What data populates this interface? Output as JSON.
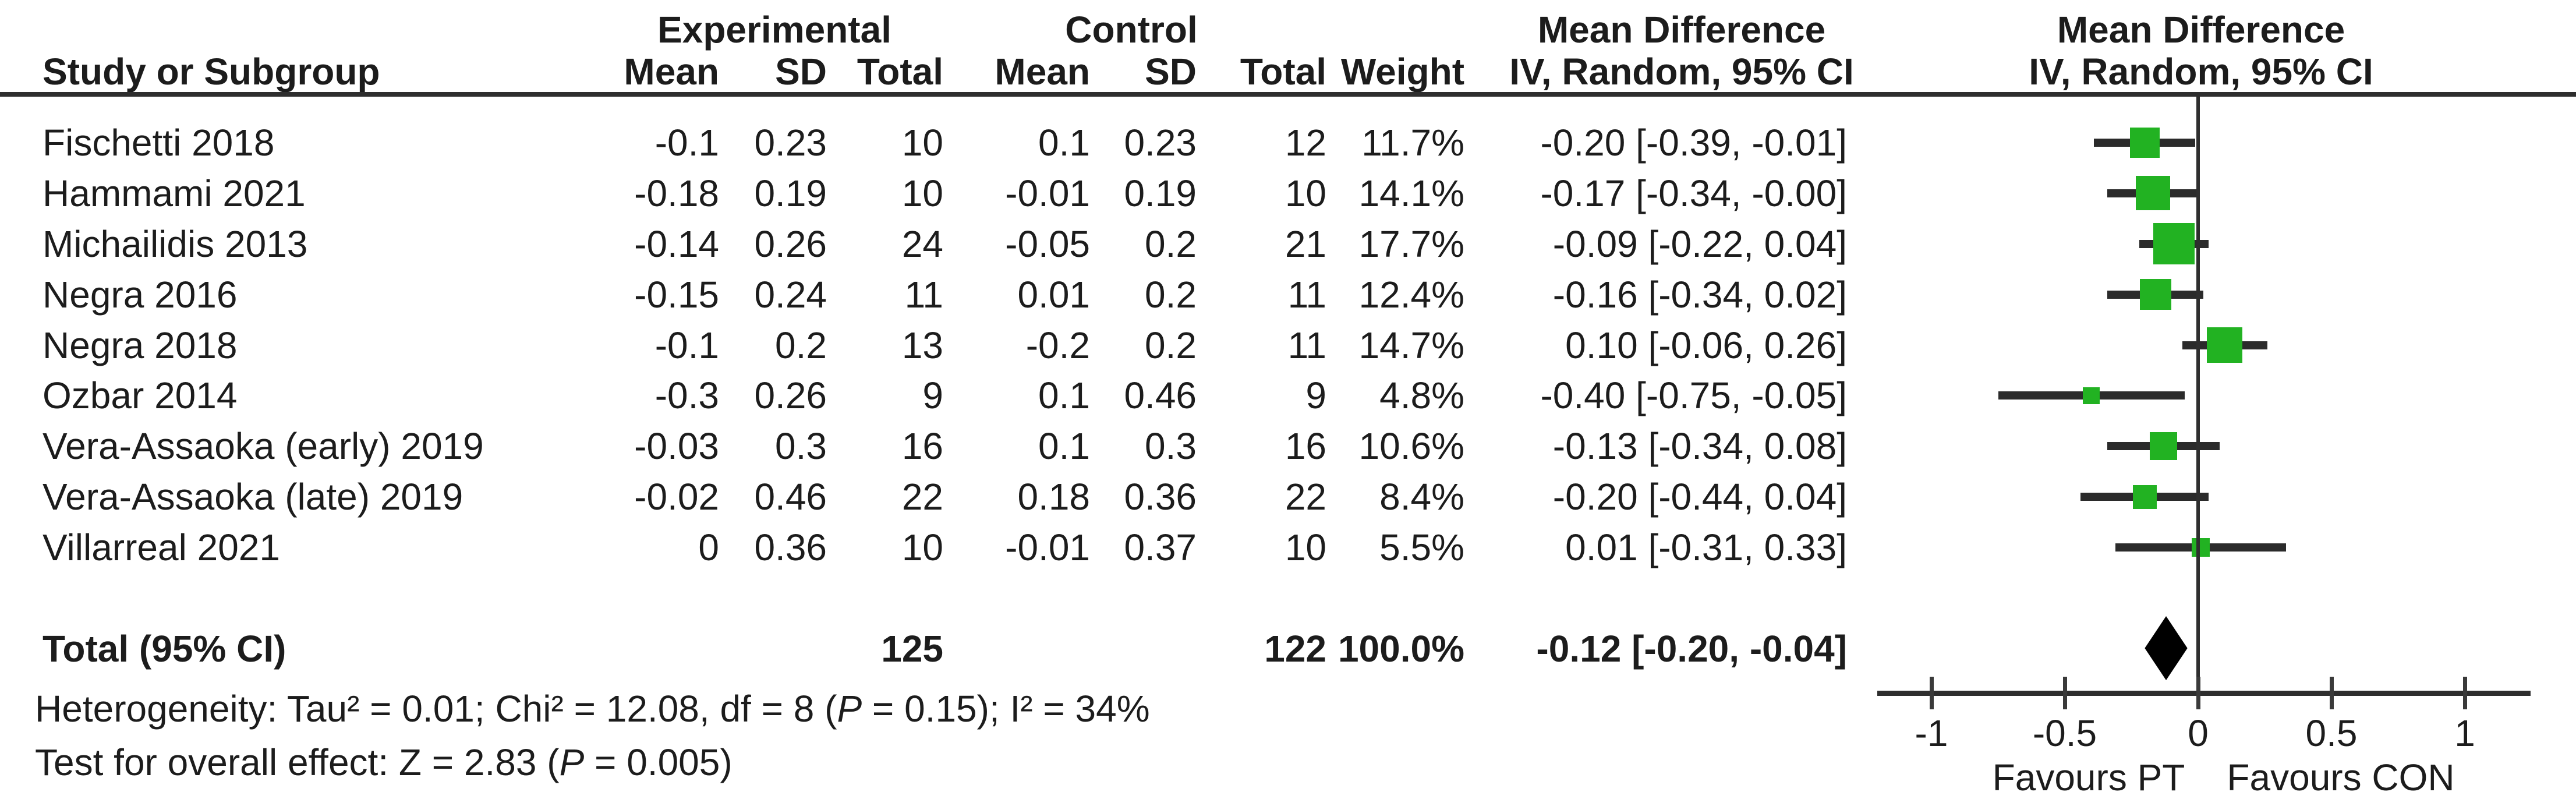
{
  "header": {
    "col_study": "Study or Subgroup",
    "group_experimental": "Experimental",
    "group_control": "Control",
    "exp_mean": "Mean",
    "exp_sd": "SD",
    "exp_total": "Total",
    "ctrl_mean": "Mean",
    "ctrl_sd": "SD",
    "ctrl_total": "Total",
    "col_weight": "Weight",
    "md_text_line1": "Mean Difference",
    "md_text_line2": "IV, Random, 95% CI",
    "md_plot_line1": "Mean Difference",
    "md_plot_line2": "IV, Random, 95% CI"
  },
  "chart_data": {
    "type": "forest",
    "effect_measure": "Mean Difference",
    "model": "IV, Random, 95% CI",
    "studies": [
      {
        "name": "Fischetti 2018",
        "exp_mean": "-0.1",
        "exp_sd": "0.23",
        "exp_total": "10",
        "ctrl_mean": "0.1",
        "ctrl_sd": "0.23",
        "ctrl_total": "12",
        "weight": "11.7%",
        "ci_text": "-0.20 [-0.39, -0.01]",
        "md": -0.2,
        "lo": -0.39,
        "hi": -0.01,
        "w": 11.7
      },
      {
        "name": "Hammami 2021",
        "exp_mean": "-0.18",
        "exp_sd": "0.19",
        "exp_total": "10",
        "ctrl_mean": "-0.01",
        "ctrl_sd": "0.19",
        "ctrl_total": "10",
        "weight": "14.1%",
        "ci_text": "-0.17 [-0.34, -0.00]",
        "md": -0.17,
        "lo": -0.34,
        "hi": 0.0,
        "w": 14.1
      },
      {
        "name": "Michailidis 2013",
        "exp_mean": "-0.14",
        "exp_sd": "0.26",
        "exp_total": "24",
        "ctrl_mean": "-0.05",
        "ctrl_sd": "0.2",
        "ctrl_total": "21",
        "weight": "17.7%",
        "ci_text": "-0.09 [-0.22, 0.04]",
        "md": -0.09,
        "lo": -0.22,
        "hi": 0.04,
        "w": 17.7
      },
      {
        "name": "Negra 2016",
        "exp_mean": "-0.15",
        "exp_sd": "0.24",
        "exp_total": "11",
        "ctrl_mean": "0.01",
        "ctrl_sd": "0.2",
        "ctrl_total": "11",
        "weight": "12.4%",
        "ci_text": "-0.16 [-0.34, 0.02]",
        "md": -0.16,
        "lo": -0.34,
        "hi": 0.02,
        "w": 12.4
      },
      {
        "name": "Negra 2018",
        "exp_mean": "-0.1",
        "exp_sd": "0.2",
        "exp_total": "13",
        "ctrl_mean": "-0.2",
        "ctrl_sd": "0.2",
        "ctrl_total": "11",
        "weight": "14.7%",
        "ci_text": "0.10 [-0.06, 0.26]",
        "md": 0.1,
        "lo": -0.06,
        "hi": 0.26,
        "w": 14.7
      },
      {
        "name": "Ozbar 2014",
        "exp_mean": "-0.3",
        "exp_sd": "0.26",
        "exp_total": "9",
        "ctrl_mean": "0.1",
        "ctrl_sd": "0.46",
        "ctrl_total": "9",
        "weight": "4.8%",
        "ci_text": "-0.40 [-0.75, -0.05]",
        "md": -0.4,
        "lo": -0.75,
        "hi": -0.05,
        "w": 4.8
      },
      {
        "name": "Vera-Assaoka (early) 2019",
        "exp_mean": "-0.03",
        "exp_sd": "0.3",
        "exp_total": "16",
        "ctrl_mean": "0.1",
        "ctrl_sd": "0.3",
        "ctrl_total": "16",
        "weight": "10.6%",
        "ci_text": "-0.13 [-0.34, 0.08]",
        "md": -0.13,
        "lo": -0.34,
        "hi": 0.08,
        "w": 10.6
      },
      {
        "name": "Vera-Assaoka (late) 2019",
        "exp_mean": "-0.02",
        "exp_sd": "0.46",
        "exp_total": "22",
        "ctrl_mean": "0.18",
        "ctrl_sd": "0.36",
        "ctrl_total": "22",
        "weight": "8.4%",
        "ci_text": "-0.20 [-0.44, 0.04]",
        "md": -0.2,
        "lo": -0.44,
        "hi": 0.04,
        "w": 8.4
      },
      {
        "name": "Villarreal 2021",
        "exp_mean": "0",
        "exp_sd": "0.36",
        "exp_total": "10",
        "ctrl_mean": "-0.01",
        "ctrl_sd": "0.37",
        "ctrl_total": "10",
        "weight": "5.5%",
        "ci_text": "0.01 [-0.31, 0.33]",
        "md": 0.01,
        "lo": -0.31,
        "hi": 0.33,
        "w": 5.5
      }
    ],
    "total": {
      "label": "Total (95% CI)",
      "exp_total": "125",
      "ctrl_total": "122",
      "weight": "100.0%",
      "ci_text": "-0.12 [-0.20, -0.04]",
      "md": -0.12,
      "lo": -0.2,
      "hi": -0.04
    },
    "axis": {
      "ticks": [
        {
          "v": -1,
          "label": "-1"
        },
        {
          "v": -0.5,
          "label": "-0.5"
        },
        {
          "v": 0,
          "label": "0"
        },
        {
          "v": 0.5,
          "label": "0.5"
        },
        {
          "v": 1,
          "label": "1"
        }
      ],
      "range": [
        -1.2,
        1.25
      ],
      "favours_left": "Favours PT",
      "favours_right": "Favours CON"
    },
    "colors": {
      "marker": "#22b222",
      "diamond": "#000000",
      "ci_line": "#2b2b2b"
    }
  },
  "footer": {
    "het_prefix": "Heterogeneity: Tau² = 0.01; Chi² = 12.08, df = 8 (",
    "het_p": "P",
    "het_suffix": " = 0.15); I² = 34%",
    "test_prefix": "Test for overall effect: Z = 2.83 (",
    "test_p": "P",
    "test_suffix": " = 0.005)"
  }
}
